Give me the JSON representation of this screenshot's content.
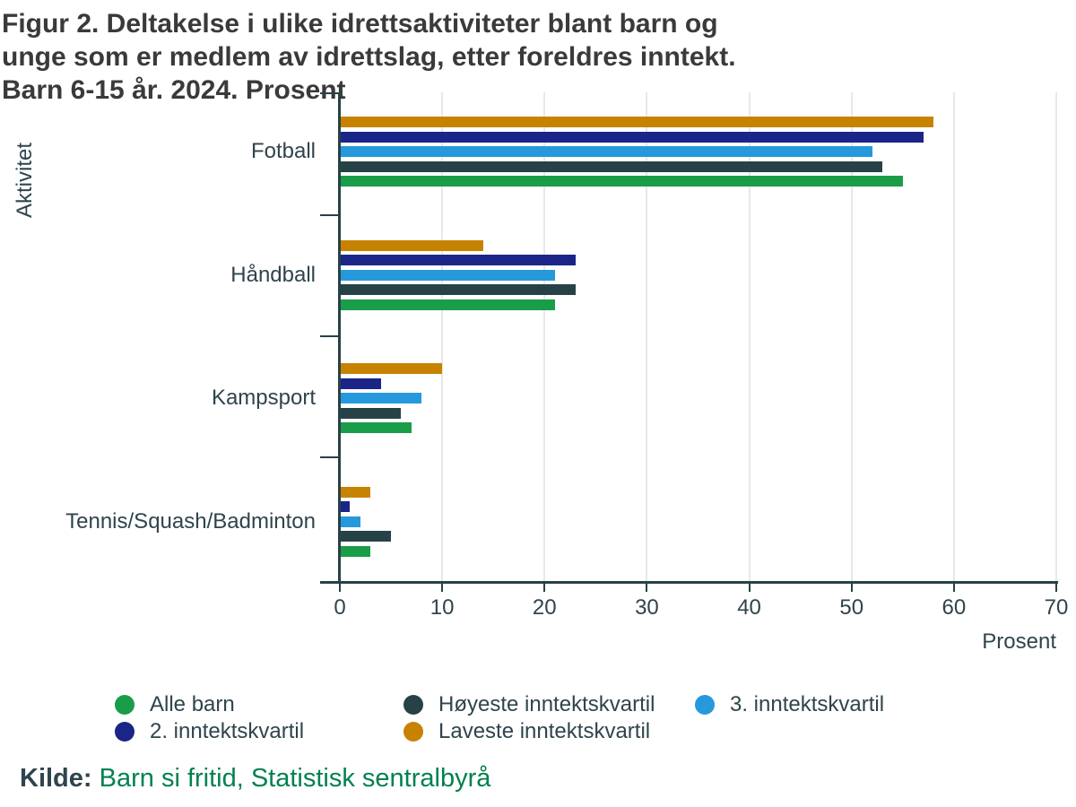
{
  "title": {
    "lines": [
      "Figur 2. Deltakelse i ulike idrettsaktiviteter blant barn og",
      "unge som er medlem av idrettslag, etter foreldres inntekt.",
      "Barn 6-15 år. 2024. Prosent"
    ]
  },
  "chart_data": {
    "type": "bar",
    "orientation": "horizontal",
    "title": "Figur 2. Deltakelse i ulike idrettsaktiviteter blant barn og unge som er medlem av idrettslag, etter foreldres inntekt. Barn 6-15 år. 2024. Prosent",
    "categories": [
      "Fotball",
      "Håndball",
      "Kampsport",
      "Tennis/Squash/Badminton"
    ],
    "series": [
      {
        "name": "Laveste inntektskvartil",
        "color": "#C78300",
        "values": [
          58,
          14,
          10,
          3
        ]
      },
      {
        "name": "2. inntektskvartil",
        "color": "#1B2588",
        "values": [
          57,
          23,
          4,
          1
        ]
      },
      {
        "name": "3. inntektskvartil",
        "color": "#2699DC",
        "values": [
          52,
          21,
          8,
          2
        ]
      },
      {
        "name": "Høyeste inntektskvartil",
        "color": "#274247",
        "values": [
          53,
          23,
          6,
          5
        ]
      },
      {
        "name": "Alle barn",
        "color": "#1A9D49",
        "values": [
          55,
          21,
          7,
          3
        ]
      }
    ],
    "series_note": "series listed in bar drawing order, top bar to bottom bar within each category group",
    "xlabel": "Prosent",
    "ylabel": "Aktivitet",
    "xlim": [
      0,
      70
    ],
    "xticks": [
      0,
      10,
      20,
      30,
      40,
      50,
      60,
      70
    ],
    "grid": true,
    "legend_position": "bottom"
  },
  "legend": {
    "items": [
      {
        "label": "Alle barn",
        "color": "#1A9D49",
        "col": 0,
        "row": 0
      },
      {
        "label": "Høyeste inntektskvartil",
        "color": "#274247",
        "col": 1,
        "row": 0
      },
      {
        "label": "3. inntektskvartil",
        "color": "#2699DC",
        "col": 2,
        "row": 0
      },
      {
        "label": "2. inntektskvartil",
        "color": "#1B2588",
        "col": 0,
        "row": 1
      },
      {
        "label": "Laveste inntektskvartil",
        "color": "#C78300",
        "col": 1,
        "row": 1
      }
    ]
  },
  "source": {
    "label": "Kilde:",
    "text": "Barn si fritid, Statistisk sentralbyrå",
    "link_color": "#00824D"
  },
  "colors": {
    "axis": "#274247",
    "gridline": "#E8E8E8",
    "title_text": "#3A3A3A",
    "label_text": "#2F444C"
  }
}
